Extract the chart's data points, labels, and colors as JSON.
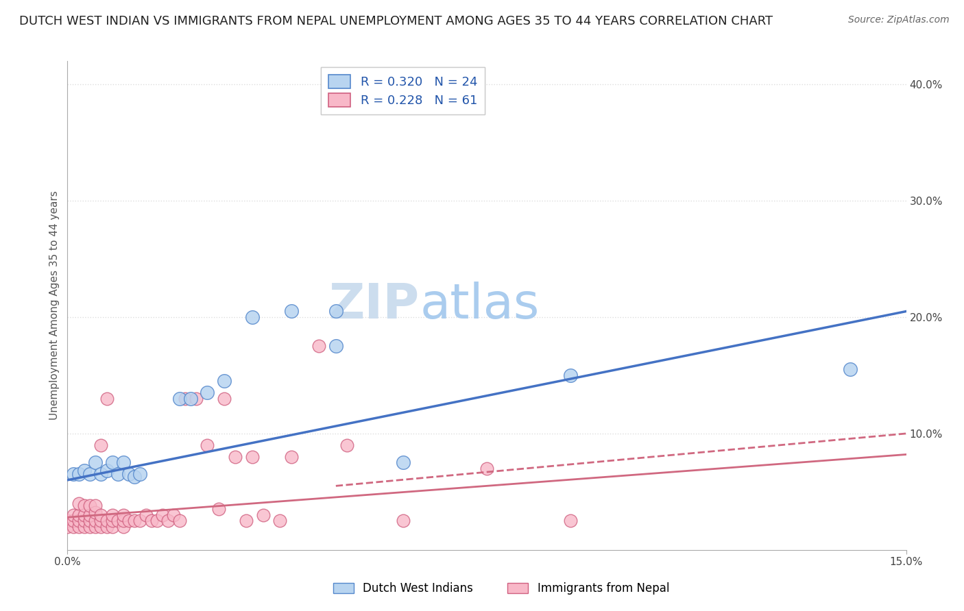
{
  "title": "DUTCH WEST INDIAN VS IMMIGRANTS FROM NEPAL UNEMPLOYMENT AMONG AGES 35 TO 44 YEARS CORRELATION CHART",
  "source": "Source: ZipAtlas.com",
  "ylabel": "Unemployment Among Ages 35 to 44 years",
  "xlabel": "",
  "xlim": [
    0.0,
    0.15
  ],
  "ylim": [
    0.0,
    0.42
  ],
  "x_ticks": [
    0.0,
    0.15
  ],
  "x_tick_labels": [
    "0.0%",
    "15.0%"
  ],
  "y_ticks": [
    0.1,
    0.2,
    0.3,
    0.4
  ],
  "y_tick_labels": [
    "10.0%",
    "20.0%",
    "30.0%",
    "40.0%"
  ],
  "blue_fill": "#b8d4f0",
  "blue_edge": "#5588cc",
  "pink_fill": "#f8b8c8",
  "pink_edge": "#d06080",
  "blue_R": 0.32,
  "blue_N": 24,
  "pink_R": 0.228,
  "pink_N": 61,
  "blue_label": "Dutch West Indians",
  "pink_label": "Immigrants from Nepal",
  "trend_blue_color": "#4472c4",
  "trend_pink_color": "#d06880",
  "watermark_zip": "ZIP",
  "watermark_atlas": "atlas",
  "blue_scatter": [
    [
      0.001,
      0.065
    ],
    [
      0.002,
      0.065
    ],
    [
      0.003,
      0.068
    ],
    [
      0.004,
      0.065
    ],
    [
      0.005,
      0.075
    ],
    [
      0.006,
      0.065
    ],
    [
      0.007,
      0.068
    ],
    [
      0.008,
      0.075
    ],
    [
      0.009,
      0.065
    ],
    [
      0.01,
      0.075
    ],
    [
      0.011,
      0.065
    ],
    [
      0.012,
      0.063
    ],
    [
      0.013,
      0.065
    ],
    [
      0.02,
      0.13
    ],
    [
      0.022,
      0.13
    ],
    [
      0.025,
      0.135
    ],
    [
      0.028,
      0.145
    ],
    [
      0.033,
      0.2
    ],
    [
      0.04,
      0.205
    ],
    [
      0.048,
      0.205
    ],
    [
      0.048,
      0.175
    ],
    [
      0.06,
      0.075
    ],
    [
      0.09,
      0.15
    ],
    [
      0.14,
      0.155
    ]
  ],
  "pink_scatter": [
    [
      0.0,
      0.02
    ],
    [
      0.0,
      0.025
    ],
    [
      0.001,
      0.02
    ],
    [
      0.001,
      0.025
    ],
    [
      0.001,
      0.03
    ],
    [
      0.002,
      0.02
    ],
    [
      0.002,
      0.025
    ],
    [
      0.002,
      0.03
    ],
    [
      0.002,
      0.04
    ],
    [
      0.003,
      0.02
    ],
    [
      0.003,
      0.025
    ],
    [
      0.003,
      0.03
    ],
    [
      0.003,
      0.038
    ],
    [
      0.004,
      0.02
    ],
    [
      0.004,
      0.025
    ],
    [
      0.004,
      0.03
    ],
    [
      0.004,
      0.038
    ],
    [
      0.005,
      0.02
    ],
    [
      0.005,
      0.025
    ],
    [
      0.005,
      0.032
    ],
    [
      0.005,
      0.038
    ],
    [
      0.006,
      0.02
    ],
    [
      0.006,
      0.025
    ],
    [
      0.006,
      0.03
    ],
    [
      0.006,
      0.09
    ],
    [
      0.007,
      0.02
    ],
    [
      0.007,
      0.025
    ],
    [
      0.007,
      0.13
    ],
    [
      0.008,
      0.02
    ],
    [
      0.008,
      0.025
    ],
    [
      0.008,
      0.03
    ],
    [
      0.009,
      0.025
    ],
    [
      0.01,
      0.02
    ],
    [
      0.01,
      0.025
    ],
    [
      0.01,
      0.03
    ],
    [
      0.011,
      0.025
    ],
    [
      0.012,
      0.025
    ],
    [
      0.013,
      0.025
    ],
    [
      0.014,
      0.03
    ],
    [
      0.015,
      0.025
    ],
    [
      0.016,
      0.025
    ],
    [
      0.017,
      0.03
    ],
    [
      0.018,
      0.025
    ],
    [
      0.019,
      0.03
    ],
    [
      0.02,
      0.025
    ],
    [
      0.021,
      0.13
    ],
    [
      0.023,
      0.13
    ],
    [
      0.025,
      0.09
    ],
    [
      0.027,
      0.035
    ],
    [
      0.028,
      0.13
    ],
    [
      0.03,
      0.08
    ],
    [
      0.032,
      0.025
    ],
    [
      0.033,
      0.08
    ],
    [
      0.035,
      0.03
    ],
    [
      0.038,
      0.025
    ],
    [
      0.04,
      0.08
    ],
    [
      0.045,
      0.175
    ],
    [
      0.05,
      0.09
    ],
    [
      0.06,
      0.025
    ],
    [
      0.075,
      0.07
    ],
    [
      0.09,
      0.025
    ]
  ],
  "blue_trend_x": [
    0.0,
    0.15
  ],
  "blue_trend_y": [
    0.06,
    0.205
  ],
  "pink_trend_x": [
    0.0,
    0.15
  ],
  "pink_trend_y": [
    0.028,
    0.082
  ],
  "pink_dash_trend_x": [
    0.048,
    0.15
  ],
  "pink_dash_trend_y": [
    0.055,
    0.1
  ],
  "background_color": "#ffffff",
  "grid_color": "#dddddd",
  "title_fontsize": 13,
  "label_fontsize": 11,
  "tick_fontsize": 11,
  "source_fontsize": 10,
  "watermark_fontsize_zip": 52,
  "watermark_fontsize_atlas": 52,
  "watermark_color_zip": "#ccddee",
  "watermark_color_atlas": "#aaccee",
  "legend_fontsize": 13,
  "legend_value_color": "#2255aa"
}
